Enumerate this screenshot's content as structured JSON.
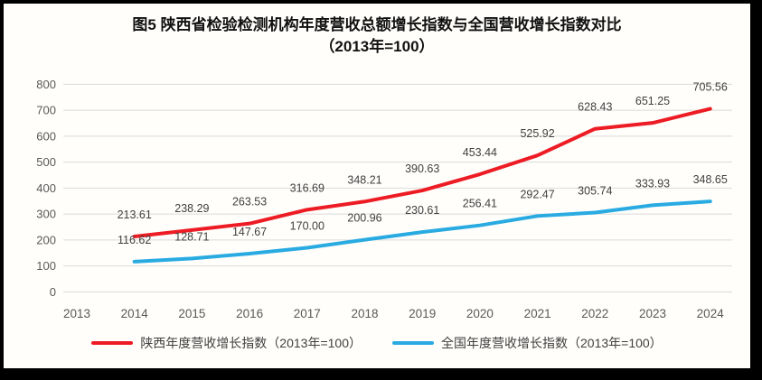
{
  "figure": {
    "title_line1": "图5  陕西省检验检测机构年度营收总额增长指数与全国营收增长指数对比",
    "title_line2": "（2013年=100）"
  },
  "colors": {
    "shaanxi_red": "#ed1c24",
    "national_blue": "#29abe2",
    "gridline": "#d9d9d9",
    "axis_text": "#595959",
    "data_label_text": "#404040",
    "frame_border": "#000000",
    "background": "#fffefb"
  },
  "chart_data": {
    "type": "line",
    "title": "图5 陕西省检验检测机构年度营收总额增长指数与全国营收增长指数对比（2013年=100）",
    "categories": [
      "2013",
      "2014",
      "2015",
      "2016",
      "2017",
      "2018",
      "2019",
      "2020",
      "2021",
      "2022",
      "2023",
      "2024"
    ],
    "series": [
      {
        "name": "陕西年度营收增长指数（2013年=100）",
        "key": "shaanxi",
        "color": "#ed1c24",
        "values": [
          null,
          213.61,
          238.29,
          263.53,
          316.69,
          348.21,
          390.63,
          453.44,
          525.92,
          628.43,
          651.25,
          705.56
        ]
      },
      {
        "name": "全国年度营收增长指数（2013年=100）",
        "key": "national",
        "color": "#29abe2",
        "values": [
          null,
          116.62,
          128.71,
          147.67,
          170.0,
          200.96,
          230.61,
          256.41,
          292.47,
          305.74,
          333.93,
          348.65
        ]
      }
    ],
    "ylim": [
      0,
      800
    ],
    "yticks": [
      0,
      100,
      200,
      300,
      400,
      500,
      600,
      700,
      800
    ],
    "grid": true,
    "legend_position": "bottom",
    "data_labels": "above",
    "label_decimals": 2
  }
}
